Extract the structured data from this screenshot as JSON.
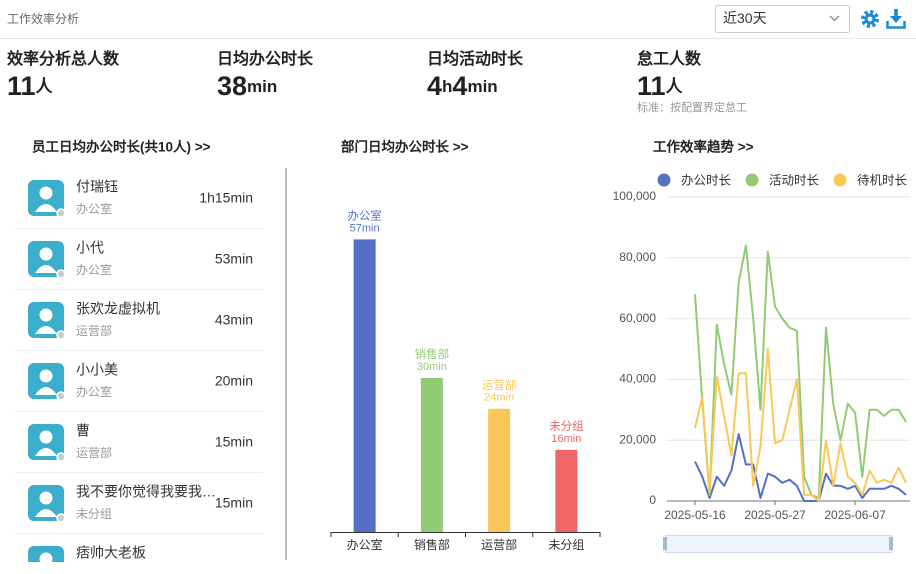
{
  "header": {
    "title": "工作效率分析",
    "range": "近30天"
  },
  "stats": [
    {
      "label": "效率分析总人数",
      "value": "11",
      "unit": "人"
    },
    {
      "label": "日均办公时长",
      "value": "38",
      "unit": "min"
    },
    {
      "label": "日均活动时长",
      "value": "4h4min"
    },
    {
      "label": "怠工人数",
      "value": "11",
      "unit": "人",
      "note": "标准：按配置界定怠工"
    }
  ],
  "employees": {
    "title": "员工日均办公时长(共10人) >>",
    "rows": [
      {
        "name": "付瑞钰",
        "dept": "办公室",
        "duration": "1h15min"
      },
      {
        "name": "小代",
        "dept": "办公室",
        "duration": "53min"
      },
      {
        "name": "张欢龙虚拟机",
        "dept": "运营部",
        "duration": "43min"
      },
      {
        "name": "小小美",
        "dept": "办公室",
        "duration": "20min"
      },
      {
        "name": "曹",
        "dept": "运营部",
        "duration": "15min"
      },
      {
        "name": "我不要你觉得我要我…",
        "dept": "未分组",
        "duration": "15min"
      },
      {
        "name": "痞帅大老板"
      }
    ]
  },
  "chart_data": [
    {
      "type": "bar",
      "title": "部门日均办公时长 >>",
      "categories": [
        "办公室",
        "销售部",
        "运营部",
        "未分组"
      ],
      "values": [
        57,
        30,
        24,
        16
      ],
      "value_labels": [
        "57min",
        "30min",
        "24min",
        "16min"
      ],
      "colors": [
        "#5470c6",
        "#91cc75",
        "#fac858",
        "#ee6666"
      ],
      "ylim": [
        0,
        60
      ]
    },
    {
      "type": "line",
      "title": "工作效率趋势 >>",
      "categories": [
        "2025-05-16",
        null,
        null,
        null,
        null,
        null,
        null,
        null,
        null,
        null,
        null,
        "2025-05-27",
        null,
        null,
        null,
        null,
        null,
        null,
        null,
        null,
        null,
        null,
        "2025-06-07",
        null,
        null,
        null,
        null,
        null,
        null,
        null
      ],
      "series": [
        {
          "name": "办公时长",
          "color": "#5470c6",
          "values": [
            13000,
            8000,
            1000,
            8000,
            5000,
            10000,
            22000,
            12000,
            12000,
            1000,
            9000,
            8000,
            6000,
            7000,
            5000,
            0,
            0,
            0,
            9000,
            5000,
            5000,
            4000,
            5000,
            1000,
            4000,
            4000,
            4000,
            5000,
            4000,
            2000
          ]
        },
        {
          "name": "活动时长",
          "color": "#91cc75",
          "values": [
            68000,
            33000,
            2000,
            58000,
            45000,
            35000,
            72000,
            84000,
            60000,
            30000,
            82000,
            64000,
            60000,
            57000,
            56000,
            8000,
            2000,
            1000,
            57000,
            32000,
            20000,
            32000,
            29000,
            8000,
            30000,
            30000,
            28000,
            30000,
            30000,
            26000
          ]
        },
        {
          "name": "待机时长",
          "color": "#fac858",
          "values": [
            24000,
            34000,
            3000,
            41000,
            28000,
            15000,
            42000,
            42000,
            5000,
            18000,
            50000,
            19000,
            20000,
            30000,
            40000,
            2000,
            2000,
            0,
            20000,
            5000,
            19000,
            8000,
            6000,
            2000,
            10000,
            6000,
            7000,
            6000,
            11000,
            6000
          ]
        }
      ],
      "ylim": [
        0,
        100000
      ],
      "yticks": [
        0,
        {
          "value": 20000,
          "label": "20,000"
        },
        {
          "value": 40000,
          "label": "40,000"
        },
        {
          "value": 60000,
          "label": "60,000"
        },
        {
          "value": 80000,
          "label": "80,000"
        },
        {
          "value": 100000,
          "label": "100,000"
        }
      ],
      "grid": true,
      "legend": "top"
    }
  ]
}
